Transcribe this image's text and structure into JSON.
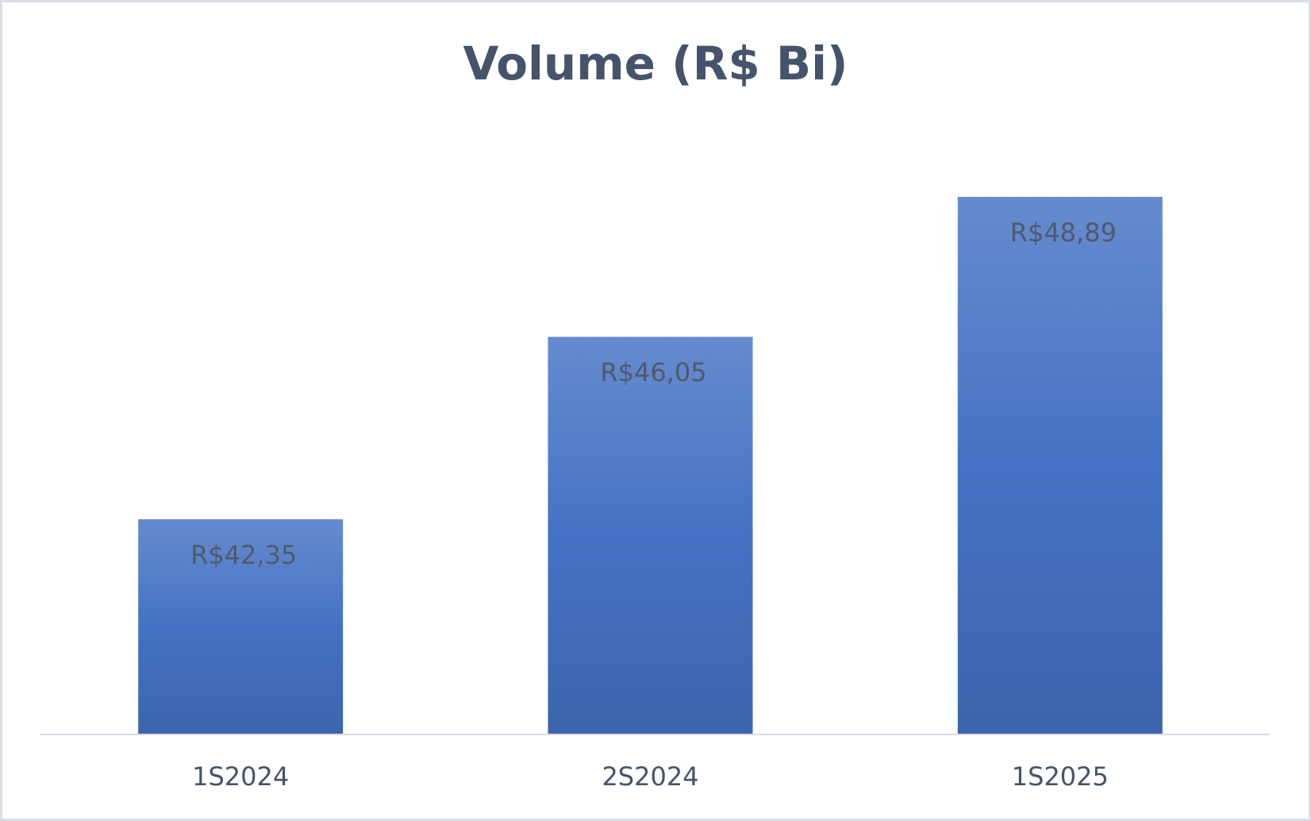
{
  "chart_data": {
    "type": "bar",
    "title": "Volume (R$ Bi)",
    "categories": [
      "1S2024",
      "2S2024",
      "1S2025"
    ],
    "values": [
      42.35,
      46.05,
      48.89
    ],
    "value_labels": [
      "R$42,35",
      "R$46,05",
      "R$48,89"
    ],
    "color": "#4472c4",
    "ylim": [
      38,
      50
    ]
  }
}
